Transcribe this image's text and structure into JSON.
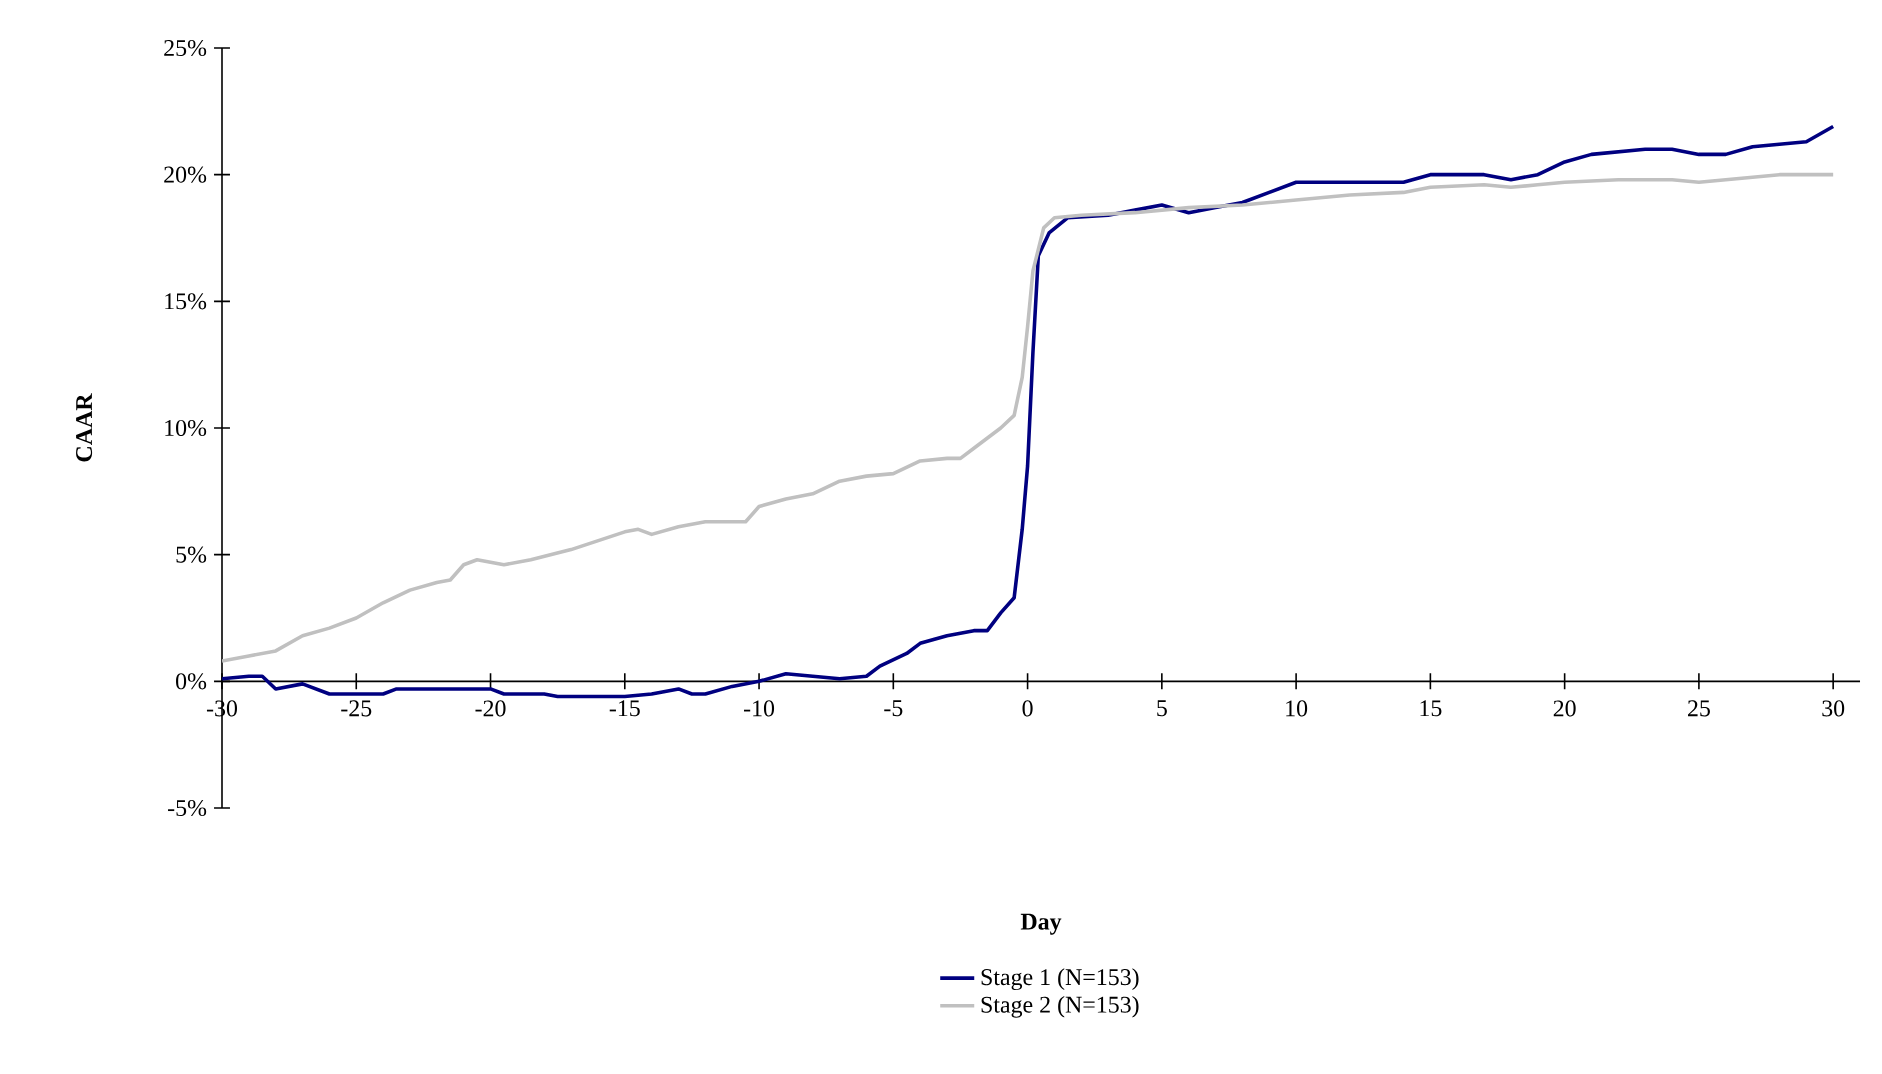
{
  "chart_data": {
    "type": "line",
    "xlabel": "Day",
    "ylabel": "CAAR",
    "xlim": [
      -30,
      31
    ],
    "xticks": [
      -30,
      -25,
      -20,
      -15,
      -10,
      -5,
      0,
      5,
      10,
      15,
      20,
      25,
      30
    ],
    "ylim": [
      -5,
      25
    ],
    "yticks": [
      {
        "value": -5,
        "label": "-5%"
      },
      {
        "value": 0,
        "label": "0%"
      },
      {
        "value": 5,
        "label": "5%"
      },
      {
        "value": 10,
        "label": "10%"
      },
      {
        "value": 15,
        "label": "15%"
      },
      {
        "value": 20,
        "label": "20%"
      },
      {
        "value": 25,
        "label": "25%"
      }
    ],
    "grid": false,
    "legend": "bottom",
    "marker": "none",
    "line_style": "solid",
    "series": [
      {
        "name": "Stage 1 (N=153)",
        "color": "#000080",
        "x": [
          -30,
          -29,
          -28.5,
          -28,
          -27,
          -26,
          -25,
          -24,
          -23.5,
          -22,
          -20,
          -19.5,
          -18,
          -17.5,
          -15,
          -14,
          -13,
          -12.5,
          -12,
          -11,
          -10,
          -9,
          -8,
          -7,
          -6,
          -5.5,
          -4.5,
          -4,
          -3,
          -2,
          -1.5,
          -1,
          -0.5,
          -0.2,
          0,
          0.2,
          0.4,
          0.8,
          1.5,
          3,
          4,
          5,
          6,
          7,
          8,
          9,
          10,
          12,
          14,
          15,
          17,
          18,
          19,
          20,
          21,
          22,
          23,
          24,
          25,
          26,
          27,
          28,
          29,
          30
        ],
        "values": [
          0.1,
          0.2,
          0.2,
          -0.3,
          -0.1,
          -0.5,
          -0.5,
          -0.5,
          -0.3,
          -0.3,
          -0.3,
          -0.5,
          -0.5,
          -0.6,
          -0.6,
          -0.5,
          -0.3,
          -0.5,
          -0.5,
          -0.2,
          0,
          0.3,
          0.2,
          0.1,
          0.2,
          0.6,
          1.1,
          1.5,
          1.8,
          2.0,
          2.0,
          2.7,
          3.3,
          6,
          8.5,
          13,
          16.8,
          17.7,
          18.3,
          18.4,
          18.6,
          18.8,
          18.5,
          18.7,
          18.9,
          19.3,
          19.7,
          19.7,
          19.7,
          20.0,
          20.0,
          19.8,
          20.0,
          20.5,
          20.8,
          20.9,
          21.0,
          21.0,
          20.8,
          20.8,
          21.1,
          21.2,
          21.3,
          21.9
        ]
      },
      {
        "name": "Stage 2 (N=153)",
        "color": "#c0c0c0",
        "x": [
          -30,
          -29,
          -28,
          -27,
          -26,
          -25,
          -24,
          -23,
          -22,
          -21.5,
          -21,
          -20.5,
          -19.5,
          -18.5,
          -17,
          -15,
          -14.5,
          -14,
          -13,
          -12,
          -10.5,
          -10,
          -9,
          -8,
          -7,
          -6,
          -5,
          -4,
          -3,
          -2.5,
          -2,
          -1,
          -0.5,
          -0.2,
          0,
          0.2,
          0.6,
          1,
          2,
          4,
          6,
          8,
          10,
          12,
          14,
          15,
          17,
          18,
          19,
          20,
          22,
          24,
          25,
          27,
          28,
          30
        ],
        "values": [
          0.8,
          1.0,
          1.2,
          1.8,
          2.1,
          2.5,
          3.1,
          3.6,
          3.9,
          4.0,
          4.6,
          4.8,
          4.6,
          4.8,
          5.2,
          5.9,
          6.0,
          5.8,
          6.1,
          6.3,
          6.3,
          6.9,
          7.2,
          7.4,
          7.9,
          8.1,
          8.2,
          8.7,
          8.8,
          8.8,
          9.2,
          10.0,
          10.5,
          12,
          14,
          16.2,
          17.9,
          18.3,
          18.4,
          18.5,
          18.7,
          18.8,
          19.0,
          19.2,
          19.3,
          19.5,
          19.6,
          19.5,
          19.6,
          19.7,
          19.8,
          19.8,
          19.7,
          19.9,
          20.0,
          20.0
        ]
      }
    ]
  }
}
